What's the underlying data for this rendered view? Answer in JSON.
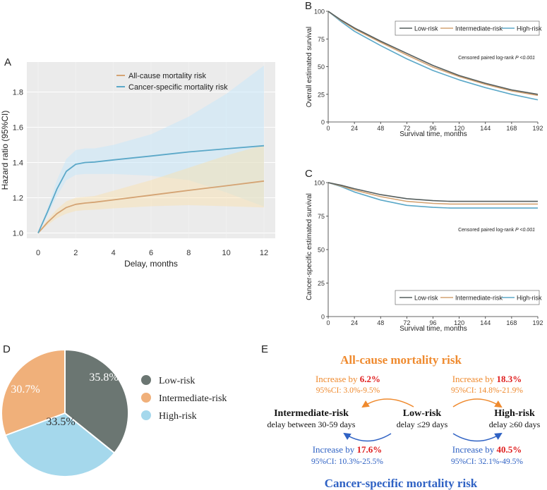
{
  "colors": {
    "orange": "#d4a373",
    "blue": "#5ba8c8",
    "dark": "#555e5d",
    "pie_low": "#6b7672",
    "pie_mid": "#f0b07a",
    "pie_high": "#a5d8ec",
    "e_orange": "#ef8a2e",
    "e_blue": "#2f62c4",
    "e_red": "#e02020"
  },
  "panel_labels": {
    "a": "A",
    "b": "B",
    "c": "C",
    "d": "D",
    "e": "E"
  },
  "chart_data": [
    {
      "id": "A",
      "type": "line",
      "xlabel": "Delay, months",
      "ylabel": "Hazard ratio (95%CI)",
      "xlim": [
        -0.6,
        12.6
      ],
      "ylim": [
        0.97,
        1.97
      ],
      "xticks": [
        0,
        2,
        4,
        6,
        8,
        10,
        12
      ],
      "yticks": [
        1.0,
        1.2,
        1.4,
        1.6,
        1.8
      ],
      "grid": true,
      "series": [
        {
          "name": "All-cause mortality risk",
          "x": [
            0,
            0.5,
            1,
            1.5,
            2,
            2.5,
            3,
            4,
            6,
            8,
            10,
            12
          ],
          "y": [
            1.0,
            1.06,
            1.11,
            1.145,
            1.163,
            1.17,
            1.175,
            1.188,
            1.215,
            1.242,
            1.268,
            1.295
          ],
          "lower": [
            1.0,
            1.045,
            1.085,
            1.11,
            1.125,
            1.13,
            1.132,
            1.14,
            1.152,
            1.158,
            1.152,
            1.145
          ],
          "upper": [
            1.0,
            1.075,
            1.135,
            1.18,
            1.2,
            1.205,
            1.21,
            1.24,
            1.3,
            1.37,
            1.44,
            1.5
          ]
        },
        {
          "name": "Cancer-specific mortality risk",
          "x": [
            0,
            0.5,
            1,
            1.5,
            2,
            2.5,
            3,
            4,
            6,
            8,
            10,
            12
          ],
          "y": [
            1.0,
            1.12,
            1.25,
            1.35,
            1.39,
            1.4,
            1.403,
            1.415,
            1.437,
            1.46,
            1.478,
            1.495
          ],
          "lower": [
            1.0,
            1.1,
            1.21,
            1.3,
            1.33,
            1.335,
            1.335,
            1.335,
            1.325,
            1.3,
            1.23,
            1.15
          ],
          "upper": [
            1.0,
            1.14,
            1.3,
            1.42,
            1.47,
            1.48,
            1.48,
            1.5,
            1.56,
            1.66,
            1.79,
            1.95
          ]
        }
      ]
    },
    {
      "id": "B",
      "type": "line",
      "xlabel": "Survival time, months",
      "ylabel": "Overall estimated survival",
      "xlim": [
        0,
        192
      ],
      "ylim": [
        0,
        100
      ],
      "xticks": [
        0,
        24,
        48,
        72,
        96,
        120,
        144,
        168,
        192
      ],
      "yticks": [
        0,
        25,
        50,
        75,
        100
      ],
      "annotation_text": "Censored paired log-rank ",
      "annotation_p": "P <0.001",
      "legend": "top-right",
      "series": [
        {
          "name": "Low-risk",
          "x": [
            0,
            12,
            24,
            48,
            72,
            96,
            120,
            144,
            168,
            192
          ],
          "y": [
            100,
            92,
            85,
            73,
            62,
            51,
            42,
            35,
            29,
            25
          ]
        },
        {
          "name": "Intermediate-risk",
          "x": [
            0,
            12,
            24,
            48,
            72,
            96,
            120,
            144,
            168,
            192
          ],
          "y": [
            100,
            91.5,
            84,
            72,
            60.5,
            49.5,
            41,
            34,
            28,
            24
          ]
        },
        {
          "name": "High-risk",
          "x": [
            0,
            12,
            24,
            48,
            72,
            96,
            120,
            144,
            168,
            192
          ],
          "y": [
            100,
            90.5,
            82,
            69,
            57,
            46.5,
            38,
            31,
            25,
            20
          ]
        }
      ]
    },
    {
      "id": "C",
      "type": "line",
      "xlabel": "Survival time, months",
      "ylabel": "Cancer-specific estimated survival",
      "xlim": [
        0,
        192
      ],
      "ylim": [
        0,
        100
      ],
      "xticks": [
        0,
        24,
        48,
        72,
        96,
        120,
        144,
        168,
        192
      ],
      "yticks": [
        0,
        25,
        50,
        75,
        100
      ],
      "annotation_text": "Censored paired log-rank ",
      "annotation_p": "P <0.001",
      "legend": "bottom-right",
      "series": [
        {
          "name": "Low-risk",
          "x": [
            0,
            12,
            24,
            48,
            72,
            96,
            112,
            192
          ],
          "y": [
            100,
            98,
            95.5,
            91,
            88,
            86.5,
            86,
            86
          ]
        },
        {
          "name": "Intermediate-risk",
          "x": [
            0,
            12,
            24,
            48,
            72,
            96,
            112,
            192
          ],
          "y": [
            100,
            97.5,
            94.5,
            89.5,
            86,
            84.5,
            84,
            84
          ]
        },
        {
          "name": "High-risk",
          "x": [
            0,
            12,
            24,
            48,
            72,
            96,
            112,
            192
          ],
          "y": [
            100,
            97,
            93,
            87,
            83,
            81.5,
            81,
            81
          ]
        }
      ]
    },
    {
      "id": "D",
      "type": "pie",
      "legend": "right",
      "slices": [
        {
          "name": "Low-risk",
          "value": 35.8,
          "label": "35.8%"
        },
        {
          "name": "High-risk",
          "value": 33.5,
          "label": "33.5%"
        },
        {
          "name": "Intermediate-risk",
          "value": 30.7,
          "label": "30.7%"
        }
      ],
      "legend_items": [
        "Low-risk",
        "Intermediate-risk",
        "High-risk"
      ]
    }
  ],
  "diagram_e": {
    "title_top": "All-cause mortality risk",
    "title_bottom": "Cancer-specific mortality risk",
    "nodes": {
      "intermediate": {
        "title": "Intermediate-risk",
        "sub": "delay between 30-59 days"
      },
      "low": {
        "title": "Low-risk",
        "sub": "delay ≤29 days"
      },
      "high": {
        "title": "High-risk",
        "sub": "delay ≥60 days"
      }
    },
    "increase_prefix": "Increase by ",
    "top_left": {
      "pct": "6.2%",
      "ci": "95%CI: 3.0%-9.5%"
    },
    "top_right": {
      "pct": "18.3%",
      "ci": "95%CI: 14.8%-21.9%"
    },
    "bottom_left": {
      "pct": "17.6%",
      "ci": "95%CI: 10.3%-25.5%"
    },
    "bottom_right": {
      "pct": "40.5%",
      "ci": "95%CI: 32.1%-49.5%"
    }
  }
}
